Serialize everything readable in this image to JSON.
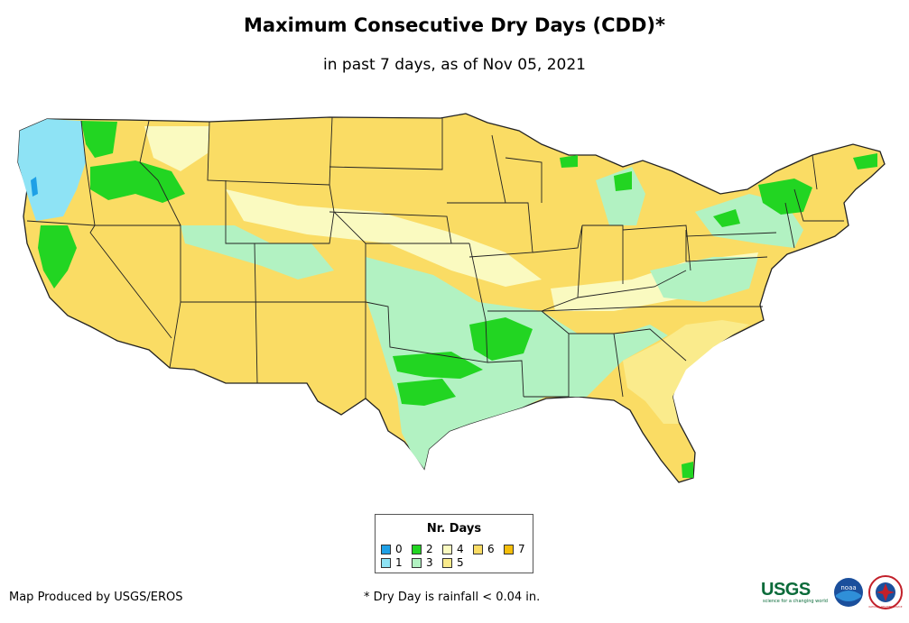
{
  "title": "Maximum Consecutive Dry Days (CDD)*",
  "subtitle": "in past 7 days, as of Nov 05, 2021",
  "legend": {
    "title": "Nr. Days",
    "items": [
      {
        "label": "0",
        "color": "#1ea0e6"
      },
      {
        "label": "1",
        "color": "#8ee3f5"
      },
      {
        "label": "2",
        "color": "#22d522"
      },
      {
        "label": "3",
        "color": "#b2f2c2"
      },
      {
        "label": "4",
        "color": "#fafac0"
      },
      {
        "label": "5",
        "color": "#faeb8c"
      },
      {
        "label": "6",
        "color": "#fadc64"
      },
      {
        "label": "7",
        "color": "#f5be0a"
      }
    ]
  },
  "credit": "Map Produced by USGS/EROS",
  "footnote": "* Dry Day is rainfall < 0.04 in.",
  "logos": {
    "usgs": "USGS",
    "usgs_tagline": "science for a changing world",
    "noaa": "noaa",
    "nws": "NATIONAL WEATHER SERVICE"
  }
}
